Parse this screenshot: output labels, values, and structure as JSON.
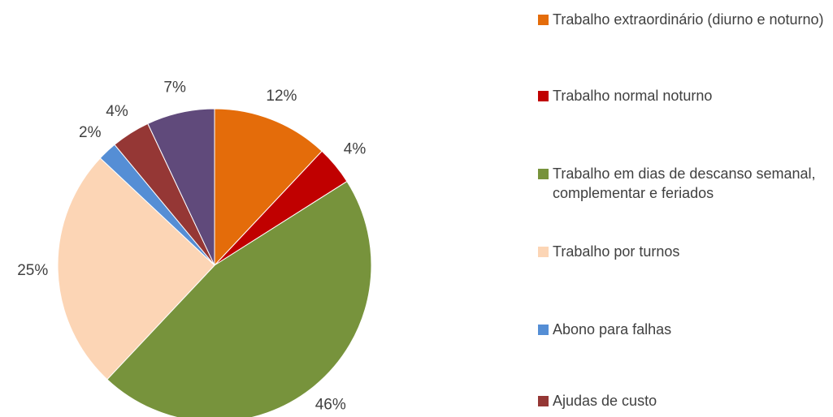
{
  "chart_data": {
    "type": "pie",
    "categories": [
      "Trabalho extraordinário (diurno e noturno)",
      "Trabalho normal noturno",
      "Trabalho em dias de descanso semanal, complementar e feriados",
      "Trabalho por turnos",
      "Abono para falhas",
      "Ajudas de custo",
      null
    ],
    "values": [
      12,
      4,
      46,
      25,
      2,
      4,
      7
    ],
    "value_labels": [
      "12%",
      "4%",
      "46%",
      "25%",
      "2%",
      "4%",
      "7%"
    ],
    "colors": [
      "#e46c0a",
      "#c00000",
      "#77933c",
      "#fcd5b5",
      "#558ed5",
      "#953735",
      "#604a7b"
    ]
  }
}
